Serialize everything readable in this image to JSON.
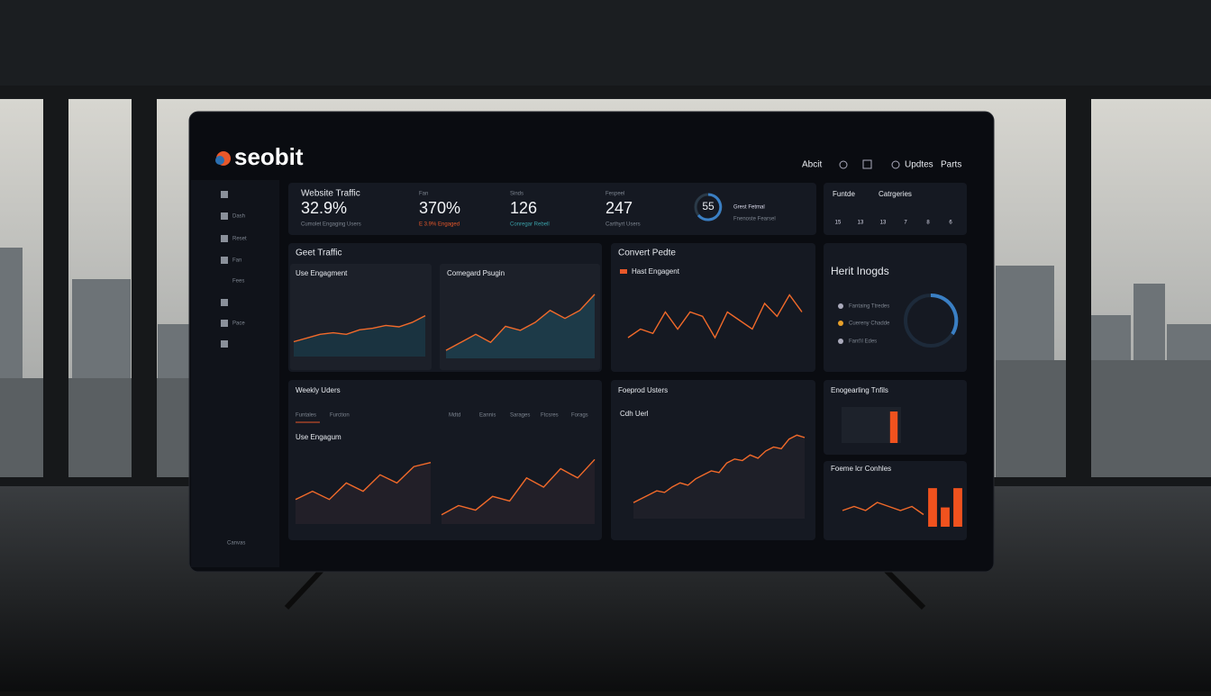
{
  "header": {
    "logo": "seobit",
    "nav": [
      "Abcit",
      "Updtes",
      "Parts"
    ]
  },
  "sidebar": {
    "items": [
      "Dash",
      "Reset",
      "Fan",
      "Fees",
      "Pace"
    ],
    "footer": "Canvas"
  },
  "kpis": [
    {
      "label": "Website Traffic",
      "value": "32.9%",
      "sub": "Cumolet Engaging Users"
    },
    {
      "label": "Fan",
      "value": "370%",
      "sub": "E 3.9% Engaged"
    },
    {
      "label": "Sinds",
      "value": "126",
      "sub": "Conregar Rebell"
    },
    {
      "label": "Fespeel",
      "value": "247",
      "sub": "Carthyrt Users"
    }
  ],
  "gauge": {
    "value": "55",
    "label": "Grest Fetmal",
    "sub": "Fnenoste Fearsel"
  },
  "categories": {
    "title": "Funtde",
    "subtitle": "Catrgeries",
    "values": [
      "15",
      "13",
      "13",
      "7",
      "8",
      "6"
    ]
  },
  "panels": {
    "traffic": "Geet Traffic",
    "convert": "Convert Pedte",
    "insights": "Herit Inogds",
    "weekly": "Weekly Uders",
    "weekly_sub": "Use Engagum",
    "weekly_tabs": [
      "Funtales",
      "Furction",
      "Mdtd",
      "Eannis",
      "Sarages",
      "Ftcsres",
      "Forags"
    ],
    "forecast": "Foeprod Usters",
    "forecast_sub": "Cdh Uerl",
    "engage": "Enogearling Tnfils",
    "features": "Foeme lcr Conhles",
    "insight_items": [
      "Fantaing Ttredes",
      "Cuereny Chadde",
      "Fant'il Edes"
    ]
  },
  "charts": [
    {
      "title": "Use Engagment",
      "values": [
        2,
        2.5,
        3,
        3.2,
        3,
        3.6,
        3.8,
        4.2,
        4,
        4.6,
        5.5
      ],
      "ylim": [
        0,
        8
      ]
    },
    {
      "title": "Comegard Psugin",
      "values": [
        1,
        2,
        3,
        2,
        4,
        3.5,
        4.5,
        6,
        5,
        6,
        8
      ],
      "ylim": [
        0,
        9
      ]
    },
    {
      "title": "Hast Engagent",
      "values": [
        2,
        3,
        2.5,
        5,
        3,
        5,
        4.5,
        2,
        5,
        4,
        3,
        6,
        4.5,
        7,
        5
      ],
      "ylim": [
        0,
        8
      ]
    },
    {
      "values": [
        3,
        4,
        3,
        5,
        4,
        6,
        5,
        7,
        7.5
      ],
      "ylim": [
        0,
        9
      ]
    },
    {
      "values": [
        1,
        2,
        1.5,
        3,
        2.5,
        5,
        4,
        6,
        5,
        7
      ],
      "ylim": [
        0,
        8
      ]
    },
    {
      "values": [
        2,
        2.5,
        3,
        3.5,
        3.3,
        4,
        4.5,
        4.2,
        5,
        5.5,
        6,
        5.8,
        7,
        7.5,
        7.3,
        8,
        7.6,
        8.5,
        9,
        8.8,
        10,
        10.5,
        10.2
      ],
      "ylim": [
        0,
        12
      ]
    },
    {
      "values": [
        2,
        2.5,
        2,
        3,
        2.5,
        2,
        2.5,
        1.5
      ],
      "ylim": [
        0,
        5
      ]
    }
  ],
  "bars": [
    {
      "values": [
        7
      ],
      "ylim": [
        0,
        8
      ]
    },
    {
      "values": [
        6,
        3,
        6
      ],
      "ylim": [
        0,
        7
      ]
    }
  ]
}
